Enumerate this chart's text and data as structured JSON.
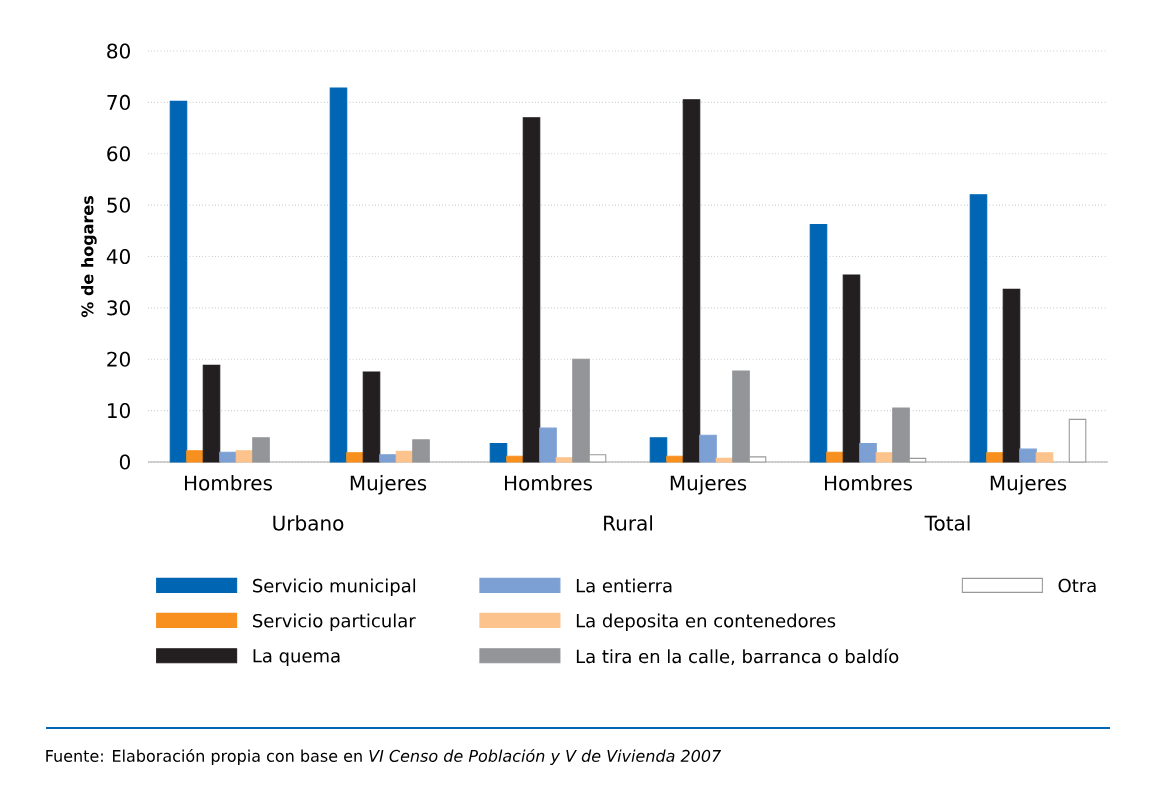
{
  "chart_data": {
    "type": "bar",
    "ylabel": "% de hogares",
    "categories": [
      "Hombres",
      "Mujeres",
      "Hombres",
      "Mujeres",
      "Hombres",
      "Mujeres"
    ],
    "series": [
      {
        "name": "Servicio municipal",
        "color": "#0066b3",
        "values": [
          70.2,
          72.8,
          3.6,
          4.7,
          46.2,
          52.0
        ]
      },
      {
        "name": "Servicio particular",
        "color": "#f7901e",
        "values": [
          2.2,
          1.8,
          1.1,
          1.1,
          1.9,
          1.8
        ]
      },
      {
        "name": "La quema",
        "color": "#231f20",
        "values": [
          18.8,
          17.5,
          67.0,
          70.5,
          36.4,
          33.6
        ]
      },
      {
        "name": "La entierra",
        "color": "#7da0d4",
        "values": [
          1.9,
          1.4,
          6.6,
          5.2,
          3.6,
          2.5
        ]
      },
      {
        "name": "La deposita en contenedores",
        "color": "#fdc38c",
        "values": [
          2.2,
          2.1,
          0.8,
          0.7,
          1.8,
          1.8
        ]
      },
      {
        "name": "La tira en la calle, barranca o baldío",
        "color": "#939598",
        "values": [
          4.7,
          4.3,
          20.0,
          17.7,
          10.5,
          null
        ]
      },
      {
        "name": "Otra",
        "color": "#ffffff",
        "values": [
          null,
          null,
          1.4,
          1.0,
          0.7,
          8.3
        ]
      }
    ],
    "ylim": [
      0,
      80
    ],
    "yticks": [
      0,
      10,
      20,
      30,
      40,
      50,
      60,
      70,
      80
    ],
    "grid": "y",
    "legend": "bottom",
    "annotations": [
      "Urbano",
      "Rural",
      "Total",
      "Fuente: Elaboración propia con base en *VI Censo de Población y V de Vivienda 2007*"
    ]
  }
}
